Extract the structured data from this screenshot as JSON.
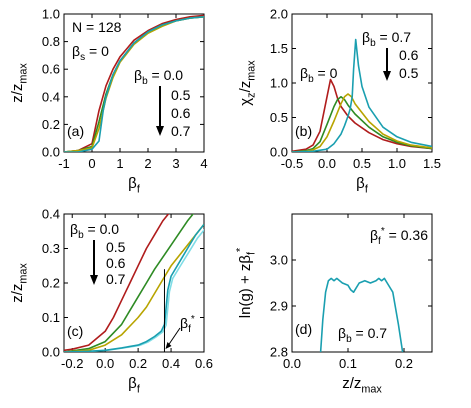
{
  "colors": {
    "red": "#b01c1c",
    "green": "#2e8b24",
    "yellow": "#b8a400",
    "teal": "#1a9fb0",
    "lightTeal": "#7fdde6"
  },
  "chart_data": [
    {
      "panel": "a",
      "type": "line",
      "panel_label": "(a)",
      "xlabel": "β_f",
      "ylabel": "z/z_max",
      "xlim": [
        -1,
        4
      ],
      "ylim": [
        0,
        1
      ],
      "xticks": [
        "-1",
        "0",
        "1",
        "2",
        "3",
        "4"
      ],
      "yticks": [
        "0.0",
        "0.2",
        "0.4",
        "0.6",
        "0.8",
        "1.0"
      ],
      "annotations": {
        "n": "N = 128",
        "beta_s": "β_s = 0",
        "beta_b_label": "β_b = 0.0",
        "b_values": [
          "0.5",
          "0.6",
          "0.7"
        ]
      },
      "series": [
        {
          "name": "0.0",
          "color": "red",
          "x": [
            -1,
            -0.5,
            0,
            0.25,
            0.5,
            0.75,
            1,
            1.5,
            2,
            2.5,
            3,
            3.5,
            4
          ],
          "y": [
            0.0,
            0.01,
            0.06,
            0.3,
            0.48,
            0.6,
            0.69,
            0.81,
            0.88,
            0.93,
            0.96,
            0.98,
            0.99
          ]
        },
        {
          "name": "0.5",
          "color": "green",
          "x": [
            -1,
            -0.5,
            0,
            0.25,
            0.5,
            0.75,
            1,
            1.5,
            2,
            2.5,
            3,
            3.5,
            4
          ],
          "y": [
            0.0,
            0.01,
            0.04,
            0.22,
            0.42,
            0.56,
            0.66,
            0.79,
            0.87,
            0.92,
            0.95,
            0.97,
            0.98
          ]
        },
        {
          "name": "0.6",
          "color": "yellow",
          "x": [
            -1,
            -0.5,
            0,
            0.25,
            0.5,
            0.75,
            1,
            1.5,
            2,
            2.5,
            3,
            3.5,
            4
          ],
          "y": [
            0.0,
            0.01,
            0.03,
            0.17,
            0.39,
            0.54,
            0.65,
            0.78,
            0.86,
            0.91,
            0.95,
            0.97,
            0.98
          ]
        },
        {
          "name": "0.7",
          "color": "teal",
          "x": [
            -1,
            -0.5,
            0,
            0.25,
            0.4,
            0.5,
            0.75,
            1,
            1.5,
            2,
            2.5,
            3,
            3.5,
            4
          ],
          "y": [
            0.0,
            0.0,
            0.02,
            0.08,
            0.3,
            0.4,
            0.56,
            0.66,
            0.79,
            0.87,
            0.92,
            0.95,
            0.97,
            0.98
          ]
        }
      ]
    },
    {
      "panel": "b",
      "type": "line",
      "panel_label": "(b)",
      "xlabel": "β_f",
      "ylabel": "χ_z/z_max",
      "xlim": [
        -0.5,
        1.5
      ],
      "ylim": [
        0,
        2
      ],
      "xticks": [
        "-0.5",
        "0.0",
        "0.5",
        "1.0",
        "1.5"
      ],
      "yticks": [
        "0.0",
        "0.5",
        "1.0",
        "1.5",
        "2.0"
      ],
      "annotations": {
        "beta_b_zero": "β_b = 0",
        "beta_b_top": "β_b = 0.7",
        "b_values": [
          "0.6",
          "0.5"
        ]
      },
      "series": [
        {
          "name": "0",
          "color": "red",
          "x": [
            -0.5,
            -0.3,
            -0.2,
            -0.1,
            0.0,
            0.05,
            0.1,
            0.15,
            0.2,
            0.3,
            0.4,
            0.6,
            0.8,
            1.0,
            1.2,
            1.5
          ],
          "y": [
            0.01,
            0.04,
            0.1,
            0.3,
            0.8,
            1.05,
            0.95,
            0.78,
            0.66,
            0.52,
            0.42,
            0.28,
            0.18,
            0.12,
            0.08,
            0.05
          ]
        },
        {
          "name": "0.5",
          "color": "green",
          "x": [
            -0.5,
            -0.3,
            -0.2,
            -0.1,
            0.0,
            0.1,
            0.15,
            0.2,
            0.25,
            0.3,
            0.4,
            0.6,
            0.8,
            1.0,
            1.2,
            1.5
          ],
          "y": [
            0.0,
            0.02,
            0.05,
            0.15,
            0.4,
            0.66,
            0.76,
            0.8,
            0.76,
            0.68,
            0.55,
            0.36,
            0.22,
            0.14,
            0.09,
            0.05
          ]
        },
        {
          "name": "0.6",
          "color": "yellow",
          "x": [
            -0.5,
            -0.3,
            -0.2,
            -0.1,
            0.0,
            0.1,
            0.2,
            0.25,
            0.3,
            0.35,
            0.4,
            0.6,
            0.8,
            1.0,
            1.2,
            1.5
          ],
          "y": [
            0.0,
            0.01,
            0.03,
            0.08,
            0.22,
            0.45,
            0.7,
            0.8,
            0.84,
            0.8,
            0.7,
            0.44,
            0.26,
            0.16,
            0.1,
            0.06
          ]
        },
        {
          "name": "0.7",
          "color": "teal",
          "x": [
            -0.5,
            -0.2,
            0.0,
            0.1,
            0.2,
            0.25,
            0.3,
            0.33,
            0.36,
            0.38,
            0.41,
            0.45,
            0.5,
            0.6,
            0.8,
            1.0,
            1.2,
            1.5
          ],
          "y": [
            0.0,
            0.01,
            0.04,
            0.12,
            0.26,
            0.38,
            0.52,
            0.62,
            0.8,
            1.2,
            1.63,
            1.25,
            0.95,
            0.65,
            0.36,
            0.22,
            0.14,
            0.08
          ]
        }
      ]
    },
    {
      "panel": "c",
      "type": "line",
      "panel_label": "(c)",
      "xlabel": "β_f",
      "ylabel": "z/z_max",
      "xlim": [
        -0.25,
        0.6
      ],
      "ylim": [
        0,
        0.4
      ],
      "xticks": [
        "-0.2",
        "0.0",
        "0.2",
        "0.4",
        "0.6"
      ],
      "yticks": [
        "0.0",
        "0.1",
        "0.2",
        "0.3",
        "0.4"
      ],
      "annotations": {
        "beta_b_label": "β_b = 0.0",
        "b_values": [
          "0.5",
          "0.6",
          "0.7"
        ],
        "beta_star": "β_f*",
        "marker_x": 0.36
      },
      "series": [
        {
          "name": "0.0",
          "color": "red",
          "x": [
            -0.25,
            -0.2,
            -0.1,
            0.0,
            0.05,
            0.1,
            0.15,
            0.2,
            0.25,
            0.3,
            0.35,
            0.4
          ],
          "y": [
            0.005,
            0.008,
            0.02,
            0.06,
            0.1,
            0.15,
            0.2,
            0.25,
            0.3,
            0.34,
            0.38,
            0.41
          ]
        },
        {
          "name": "0.5",
          "color": "green",
          "x": [
            -0.25,
            -0.1,
            0.0,
            0.1,
            0.2,
            0.25,
            0.3,
            0.4,
            0.5,
            0.55
          ],
          "y": [
            0.0,
            0.01,
            0.03,
            0.08,
            0.16,
            0.2,
            0.24,
            0.31,
            0.38,
            0.41
          ]
        },
        {
          "name": "0.6",
          "color": "yellow",
          "x": [
            -0.25,
            -0.1,
            0.0,
            0.1,
            0.2,
            0.25,
            0.3,
            0.35,
            0.4,
            0.5,
            0.6
          ],
          "y": [
            0.0,
            0.005,
            0.02,
            0.05,
            0.1,
            0.13,
            0.17,
            0.21,
            0.25,
            0.31,
            0.37
          ]
        },
        {
          "name": "0.7",
          "color": "teal",
          "x": [
            -0.25,
            -0.1,
            0.0,
            0.1,
            0.2,
            0.25,
            0.3,
            0.34,
            0.36,
            0.38,
            0.4,
            0.45,
            0.5,
            0.55,
            0.6
          ],
          "y": [
            0.0,
            0.002,
            0.005,
            0.012,
            0.02,
            0.03,
            0.045,
            0.06,
            0.08,
            0.18,
            0.22,
            0.26,
            0.3,
            0.34,
            0.37
          ]
        }
      ]
    },
    {
      "panel": "d",
      "type": "line",
      "panel_label": "(d)",
      "xlabel": "z/z_max",
      "ylabel": "ln(g) + zβ_f*",
      "xlim": [
        0.0,
        0.25
      ],
      "ylim": [
        2.8,
        3.1
      ],
      "xticks": [
        "0.0",
        "0.1",
        "0.2"
      ],
      "yticks": [
        "2.8",
        "2.9",
        "3.0"
      ],
      "annotations": {
        "beta_star": "β_f* = 0.36",
        "beta_b": "β_b = 0.7"
      },
      "series": [
        {
          "name": "0.7",
          "color": "teal",
          "x": [
            0.05,
            0.055,
            0.06,
            0.065,
            0.07,
            0.075,
            0.08,
            0.09,
            0.1,
            0.105,
            0.11,
            0.115,
            0.12,
            0.13,
            0.14,
            0.15,
            0.155,
            0.16,
            0.165,
            0.17,
            0.18,
            0.19,
            0.2
          ],
          "y": [
            2.78,
            2.87,
            2.93,
            2.955,
            2.96,
            2.955,
            2.96,
            2.95,
            2.945,
            2.935,
            2.93,
            2.94,
            2.95,
            2.955,
            2.95,
            2.955,
            2.96,
            2.955,
            2.96,
            2.95,
            2.93,
            2.86,
            2.78
          ]
        }
      ]
    }
  ]
}
